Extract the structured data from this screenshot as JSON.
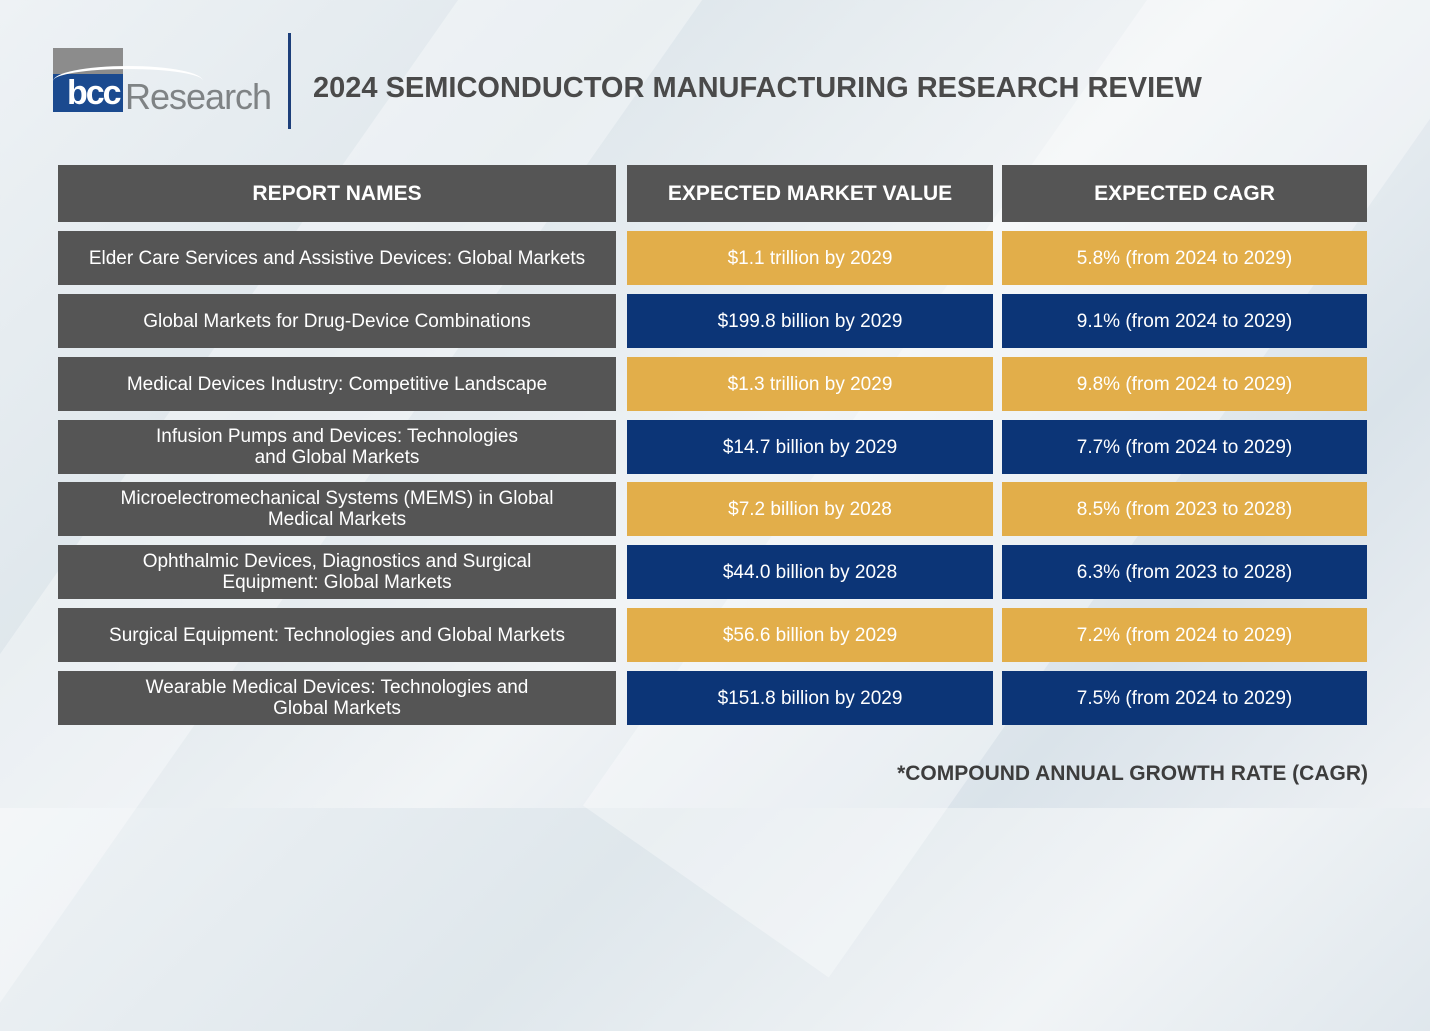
{
  "logo": {
    "mark": "bcc",
    "word": "Research"
  },
  "title": "2024 SEMICONDUCTOR MANUFACTURING RESEARCH REVIEW",
  "headers": [
    "REPORT NAMES",
    "EXPECTED MARKET VALUE",
    "EXPECTED CAGR"
  ],
  "colors": {
    "header": "#555555",
    "gold": "#e2ae4a",
    "navy": "#0c3577"
  },
  "rows": [
    {
      "name": "Elder Care Services and Assistive Devices: Global Markets",
      "value": "$1.1 trillion by 2029",
      "cagr": "5.8% (from 2024 to 2029)",
      "color": "gold"
    },
    {
      "name": "Global Markets for Drug-Device Combinations",
      "value": "$199.8 billion by 2029",
      "cagr": "9.1% (from 2024 to 2029)",
      "color": "navy"
    },
    {
      "name": "Medical Devices Industry: Competitive Landscape",
      "value": "$1.3 trillion by 2029",
      "cagr": "9.8% (from 2024 to 2029)",
      "color": "gold"
    },
    {
      "name": "Infusion Pumps and Devices: Technologies\nand Global Markets",
      "value": "$14.7 billion by 2029",
      "cagr": "7.7% (from 2024 to 2029)",
      "color": "navy"
    },
    {
      "name": "Microelectromechanical Systems (MEMS) in Global\nMedical Markets",
      "value": "$7.2 billion by 2028",
      "cagr": "8.5% (from 2023 to 2028)",
      "color": "gold"
    },
    {
      "name": "Ophthalmic Devices, Diagnostics and Surgical\nEquipment: Global Markets",
      "value": "$44.0 billion by 2028",
      "cagr": "6.3% (from 2023 to 2028)",
      "color": "navy"
    },
    {
      "name": "Surgical Equipment: Technologies and Global Markets",
      "value": "$56.6 billion by 2029",
      "cagr": "7.2% (from 2024 to 2029)",
      "color": "gold"
    },
    {
      "name": "Wearable Medical Devices: Technologies and\nGlobal Markets",
      "value": "$151.8 billion by 2029",
      "cagr": "7.5% (from 2024 to 2029)",
      "color": "navy"
    }
  ],
  "footnote": "*COMPOUND ANNUAL GROWTH RATE (CAGR)"
}
